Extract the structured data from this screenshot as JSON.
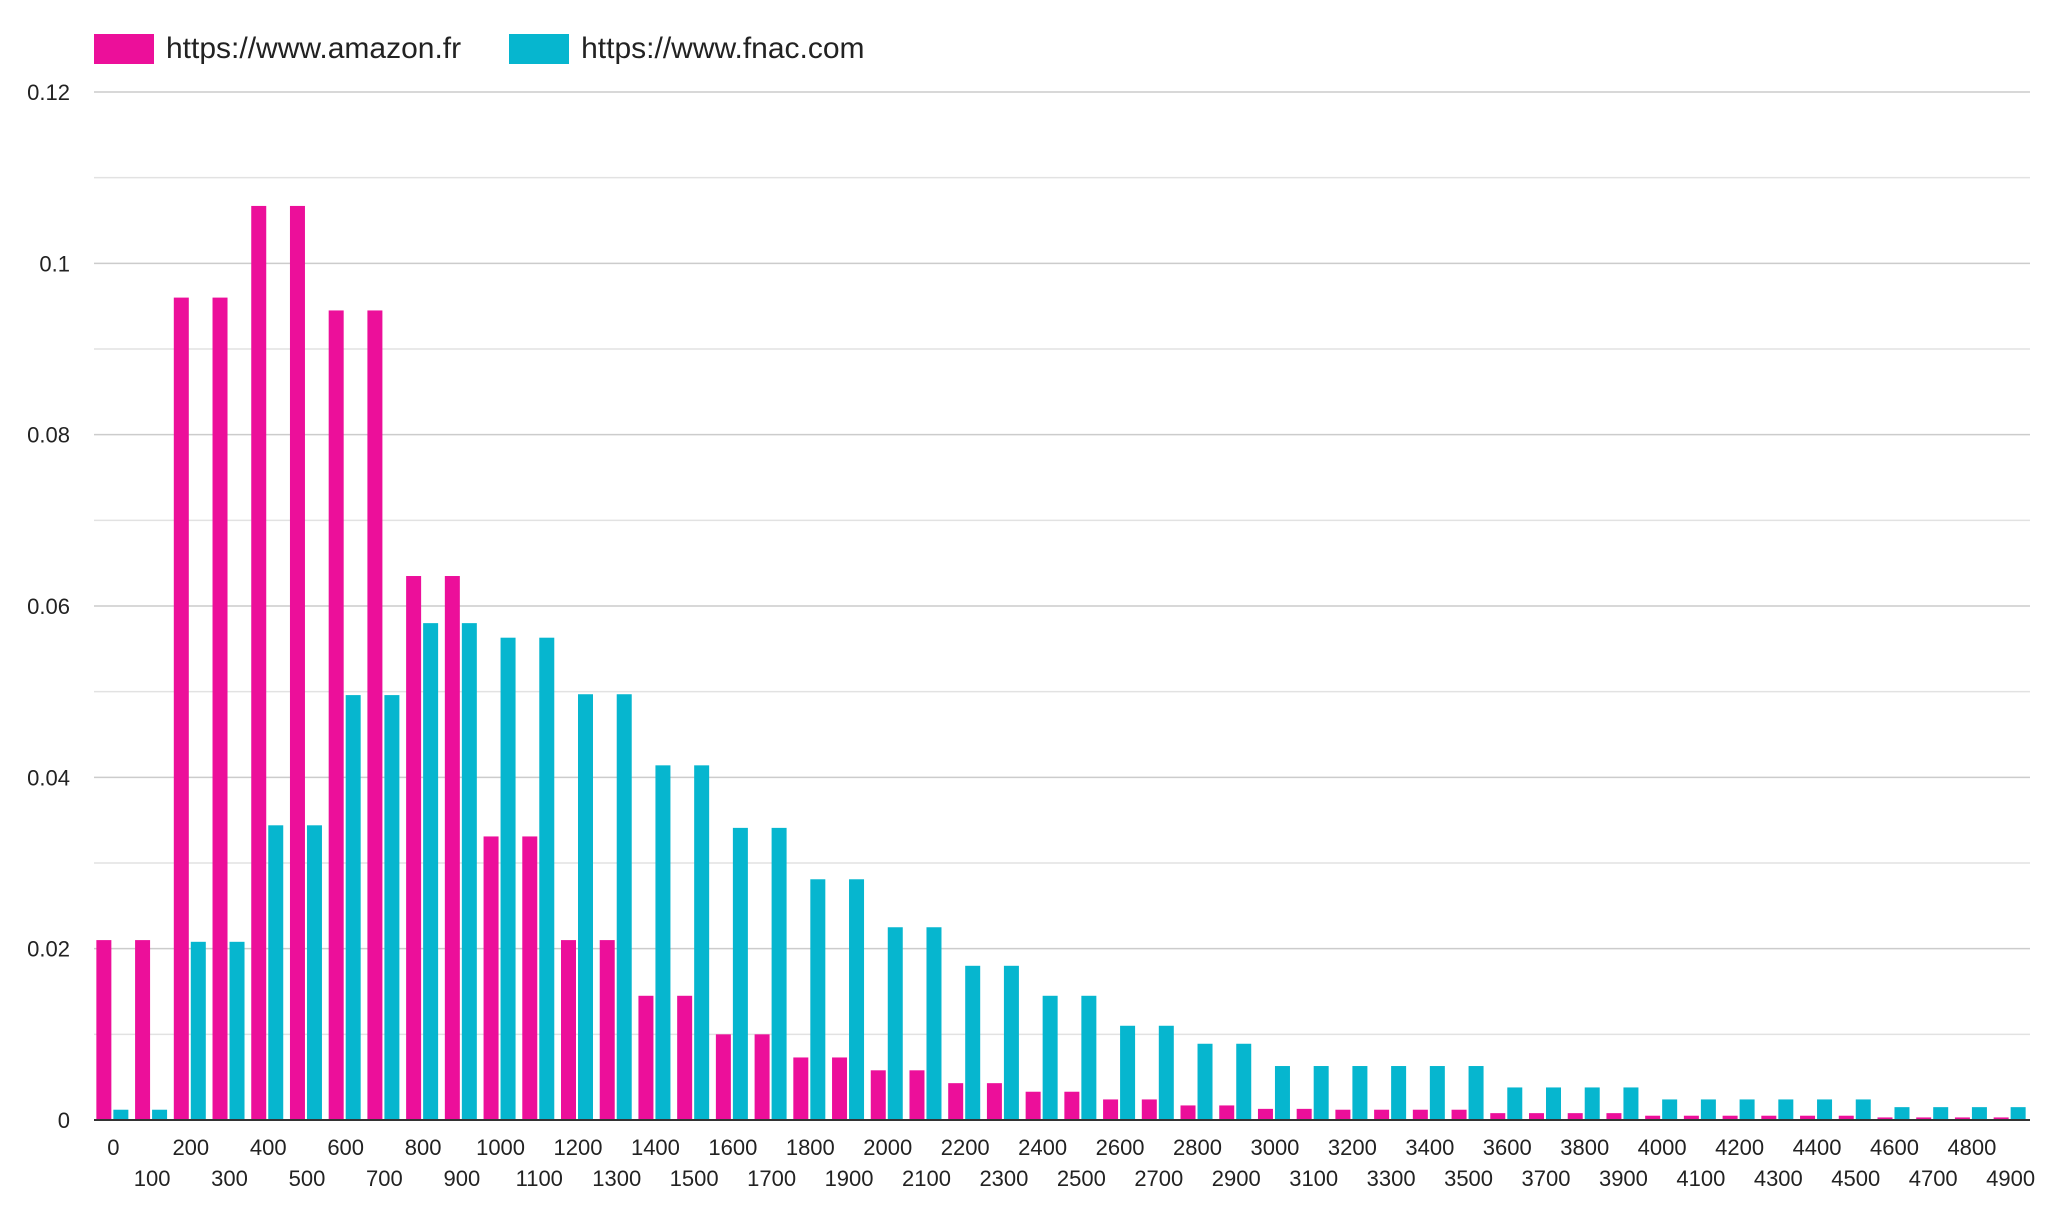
{
  "chart_data": {
    "type": "bar",
    "title": "",
    "xlabel": "",
    "ylabel": "",
    "ylim": [
      0,
      0.12
    ],
    "yticks": [
      "0",
      "0.02",
      "0.04",
      "0.06",
      "0.08",
      "0.1",
      "0.12"
    ],
    "ytick_values": [
      0,
      0.02,
      0.04,
      0.06,
      0.08,
      0.1,
      0.12
    ],
    "grid": true,
    "legend_position": "top-left",
    "categories": [
      "0",
      "100",
      "200",
      "300",
      "400",
      "500",
      "600",
      "700",
      "800",
      "900",
      "1000",
      "1100",
      "1200",
      "1300",
      "1400",
      "1500",
      "1600",
      "1700",
      "1800",
      "1900",
      "2000",
      "2100",
      "2200",
      "2300",
      "2400",
      "2500",
      "2600",
      "2700",
      "2800",
      "2900",
      "3000",
      "3100",
      "3200",
      "3300",
      "3400",
      "3500",
      "3600",
      "3700",
      "3800",
      "3900",
      "4000",
      "4100",
      "4200",
      "4300",
      "4400",
      "4500",
      "4600",
      "4700",
      "4800",
      "4900"
    ],
    "series": [
      {
        "name": "https://www.amazon.fr",
        "color": "#EC0F9A",
        "values": [
          0.021,
          0.021,
          0.096,
          0.096,
          0.1067,
          0.1067,
          0.0945,
          0.0945,
          0.0635,
          0.0635,
          0.0331,
          0.0331,
          0.021,
          0.021,
          0.0145,
          0.0145,
          0.01,
          0.01,
          0.0073,
          0.0073,
          0.0058,
          0.0058,
          0.0043,
          0.0043,
          0.0033,
          0.0033,
          0.0024,
          0.0024,
          0.0017,
          0.0017,
          0.0013,
          0.0013,
          0.0012,
          0.0012,
          0.0012,
          0.0012,
          0.0008,
          0.0008,
          0.0008,
          0.0008,
          0.0005,
          0.0005,
          0.0005,
          0.0005,
          0.0005,
          0.0005,
          0.0003,
          0.0003,
          0.0003,
          0.0003
        ]
      },
      {
        "name": "https://www.fnac.com",
        "color": "#06B6CF",
        "values": [
          0.0012,
          0.0012,
          0.0208,
          0.0208,
          0.0344,
          0.0344,
          0.0496,
          0.0496,
          0.058,
          0.058,
          0.0563,
          0.0563,
          0.0497,
          0.0497,
          0.0414,
          0.0414,
          0.0341,
          0.0341,
          0.0281,
          0.0281,
          0.0225,
          0.0225,
          0.018,
          0.018,
          0.0145,
          0.0145,
          0.011,
          0.011,
          0.0089,
          0.0089,
          0.0063,
          0.0063,
          0.0063,
          0.0063,
          0.0063,
          0.0063,
          0.0038,
          0.0038,
          0.0038,
          0.0038,
          0.0024,
          0.0024,
          0.0024,
          0.0024,
          0.0024,
          0.0024,
          0.0015,
          0.0015,
          0.0015,
          0.0015
        ]
      }
    ]
  }
}
